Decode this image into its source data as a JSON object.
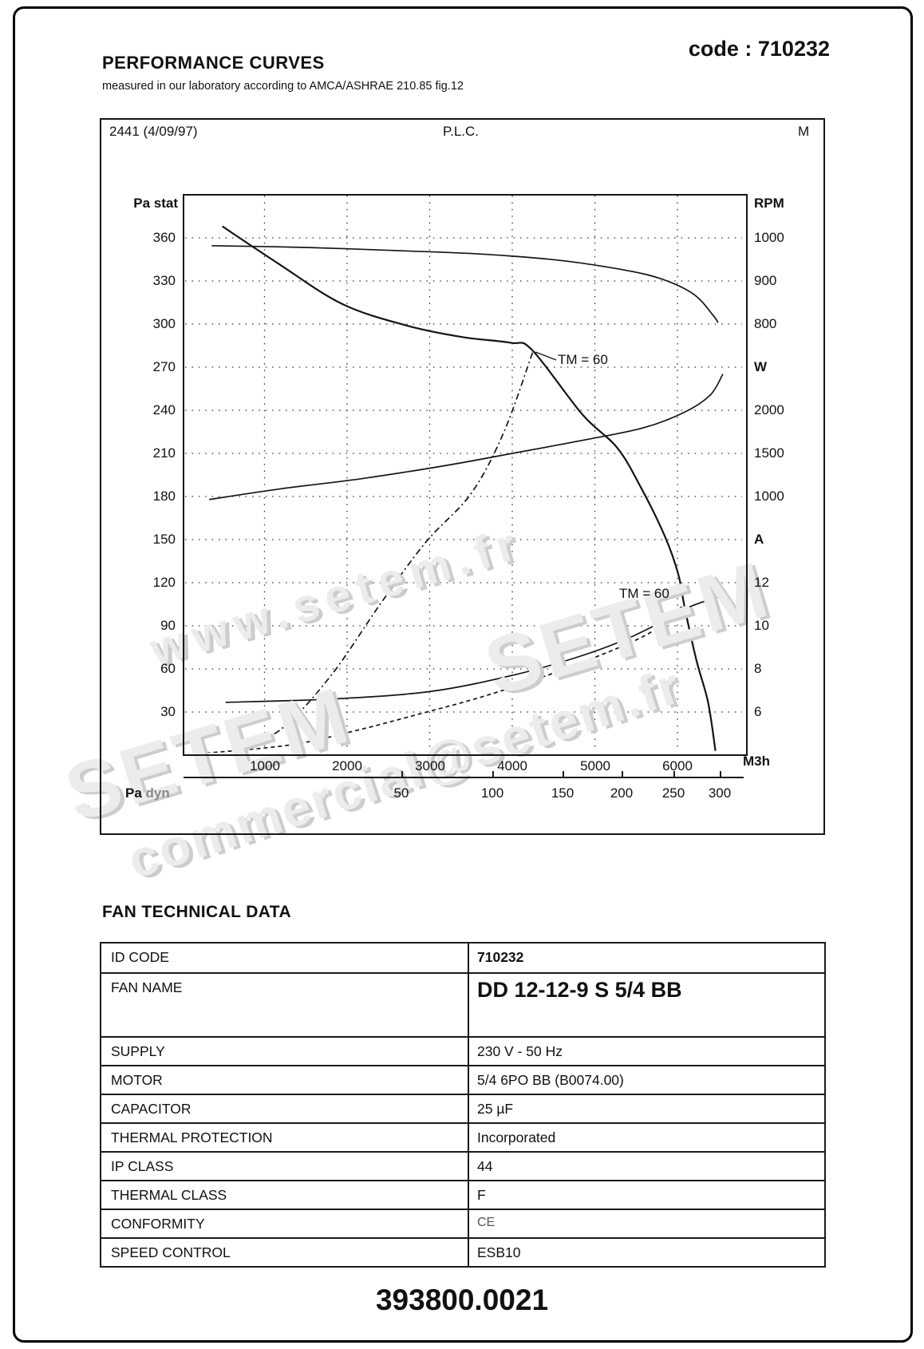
{
  "page": {
    "title": "PERFORMANCE CURVES",
    "subtitle": "measured in our laboratory according to AMCA/ASHRAE 210.85 fig.12",
    "code": "code : 710232",
    "footer": "393800.0021"
  },
  "chart_card": {
    "header_left": "2441 (4/09/97)",
    "header_center": "P.L.C.",
    "header_right": "M",
    "left_axis_title": "Pa stat",
    "right_axis_title": "RPM",
    "x_unit": "M3h",
    "secondary_label_main": "Pa",
    "secondary_label_sub": "dyn"
  },
  "annotations": {
    "tm_upper": "TM = 60",
    "tm_lower": "TM = 60"
  },
  "watermarks": {
    "url": "www.setem.fr",
    "brand1": "SETEM",
    "brand2": "SETEM",
    "email": "commercial@setem.fr"
  },
  "table": {
    "heading": "FAN TECHNICAL DATA",
    "rows": [
      {
        "label": "ID CODE",
        "value": "710232",
        "bold": true
      },
      {
        "label": "FAN NAME",
        "value": "DD 12-12-9 S 5/4 BB",
        "big": true
      },
      {
        "label": "SUPPLY",
        "value": "230 V - 50 Hz"
      },
      {
        "label": "MOTOR",
        "value": "5/4 6PO BB (B0074.00)"
      },
      {
        "label": "CAPACITOR",
        "value": "25 µF"
      },
      {
        "label": "THERMAL PROTECTION",
        "value": "Incorporated"
      },
      {
        "label": "IP CLASS",
        "value": "44"
      },
      {
        "label": "THERMAL CLASS",
        "value": "F"
      },
      {
        "label": "CONFORMITY",
        "value": "CE",
        "faint": true
      },
      {
        "label": "SPEED CONTROL",
        "value": "ESB10"
      }
    ]
  },
  "chart_data": {
    "type": "line",
    "title": "P.L.C.",
    "grid": true,
    "x_axis": {
      "label": "M3h",
      "range": [
        0,
        6810
      ],
      "ticks": [
        1000,
        2000,
        3000,
        4000,
        5000,
        6000
      ]
    },
    "y_axis_left": {
      "label": "Pa stat",
      "range": [
        0,
        390
      ],
      "ticks": [
        360,
        330,
        300,
        270,
        240,
        210,
        180,
        150,
        120,
        90,
        60,
        30
      ]
    },
    "right_axis_labels": [
      {
        "t": "1000",
        "pa": 360
      },
      {
        "t": "900",
        "pa": 330
      },
      {
        "t": "800",
        "pa": 300
      },
      {
        "t": "W",
        "pa": 270,
        "b": true
      },
      {
        "t": "2000",
        "pa": 240
      },
      {
        "t": "1500",
        "pa": 210
      },
      {
        "t": "1000",
        "pa": 180
      },
      {
        "t": "A",
        "pa": 150,
        "b": true
      },
      {
        "t": "12",
        "pa": 120
      },
      {
        "t": "10",
        "pa": 90
      },
      {
        "t": "8",
        "pa": 60
      },
      {
        "t": "6",
        "pa": 30
      }
    ],
    "secondary_x_axis": {
      "label": "Pa dyn",
      "ticks": [
        50,
        100,
        150,
        200,
        250,
        300
      ]
    },
    "series": [
      {
        "name": "static pressure",
        "unit": "Pa",
        "style": "solid",
        "points": [
          [
            490,
            368
          ],
          [
            1170,
            342
          ],
          [
            1940,
            314
          ],
          [
            2720,
            299
          ],
          [
            3390,
            291
          ],
          [
            3980,
            287
          ],
          [
            4240,
            282
          ],
          [
            4850,
            237
          ],
          [
            5270,
            214
          ],
          [
            5560,
            186
          ],
          [
            5850,
            152
          ],
          [
            6010,
            126
          ],
          [
            6090,
            102
          ],
          [
            6230,
            66
          ],
          [
            6370,
            37
          ],
          [
            6460,
            3
          ]
        ]
      },
      {
        "name": "rotation speed",
        "unit": "RPM",
        "style": "solid",
        "points": [
          [
            360,
            982
          ],
          [
            1500,
            978
          ],
          [
            2700,
            970
          ],
          [
            3600,
            963
          ],
          [
            4500,
            950
          ],
          [
            5300,
            928
          ],
          [
            5800,
            906
          ],
          [
            6200,
            870
          ],
          [
            6440,
            820
          ],
          [
            6490,
            805
          ]
        ]
      },
      {
        "name": "power input",
        "unit": "W",
        "style": "solid",
        "points": [
          [
            330,
            965
          ],
          [
            1200,
            1090
          ],
          [
            2200,
            1210
          ],
          [
            3200,
            1360
          ],
          [
            4000,
            1500
          ],
          [
            4900,
            1660
          ],
          [
            5600,
            1800
          ],
          [
            6100,
            1985
          ],
          [
            6400,
            2180
          ],
          [
            6550,
            2420
          ]
        ]
      },
      {
        "name": "current",
        "unit": "A",
        "style": "solid",
        "points": [
          [
            530,
            6.45
          ],
          [
            1800,
            6.6
          ],
          [
            3000,
            6.95
          ],
          [
            4000,
            7.7
          ],
          [
            4750,
            8.5
          ],
          [
            5330,
            9.3
          ],
          [
            5820,
            10.2
          ],
          [
            6070,
            10.75
          ],
          [
            6300,
            11.1
          ],
          [
            6510,
            11.35
          ]
        ]
      },
      {
        "name": "dynamic pressure",
        "unit": "Pa",
        "style": "dashed",
        "points": [
          [
            210,
            1
          ],
          [
            1300,
            7
          ],
          [
            2100,
            17
          ],
          [
            2900,
            29
          ],
          [
            3600,
            40
          ],
          [
            4300,
            53
          ],
          [
            5000,
            68
          ],
          [
            5600,
            83
          ],
          [
            6070,
            100
          ]
        ]
      },
      {
        "name": "TM = 60 limit",
        "unit": "Pa",
        "style": "dashdot",
        "points": [
          [
            640,
            3
          ],
          [
            1200,
            18
          ],
          [
            1800,
            55
          ],
          [
            2400,
            105
          ],
          [
            2950,
            148
          ],
          [
            3500,
            182
          ],
          [
            3900,
            225
          ],
          [
            4250,
            281
          ]
        ]
      }
    ],
    "markers": [
      {
        "label": "TM = 60 point",
        "m3h": 6070,
        "pa": 101
      }
    ]
  }
}
